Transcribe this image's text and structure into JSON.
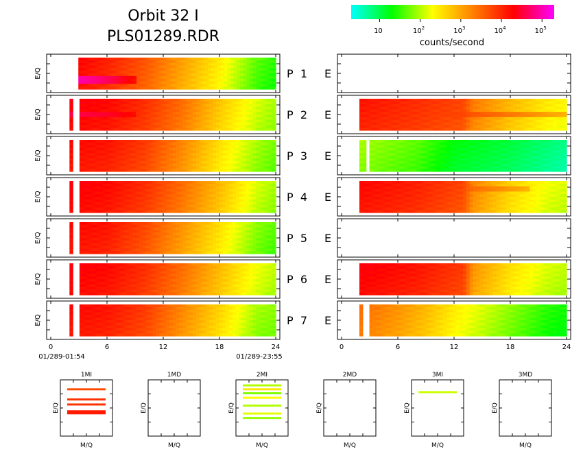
{
  "header": {
    "title_line1": "Orbit 32 I",
    "title_line2": "PLS01289.RDR"
  },
  "colorbar": {
    "label": "counts/second",
    "ticks": [
      {
        "base": "10",
        "exp": ""
      },
      {
        "base": "10",
        "exp": "2"
      },
      {
        "base": "10",
        "exp": "3"
      },
      {
        "base": "10",
        "exp": "4"
      },
      {
        "base": "10",
        "exp": "5"
      }
    ],
    "log_range": [
      0.3,
      5.3
    ],
    "colors": [
      "#00ffff",
      "#00ff00",
      "#ffff00",
      "#ff8000",
      "#ff0000",
      "#ff00ff"
    ]
  },
  "chart_data": {
    "type": "heatmap",
    "ylabel": "E/Q",
    "x_ticks": [
      "0",
      "6",
      "12",
      "18",
      "24"
    ],
    "x_range": [
      0,
      24
    ],
    "x_start_label": "01/289-01:54",
    "x_end_label": "01/289-23:55",
    "panel_mid_label": "E",
    "left_panels": [
      {
        "label": "P 1",
        "data_start_hr": 2.6,
        "data_end_hr": 24,
        "gap": [
          2.3,
          2.8
        ],
        "profile": [
          [
            2.0,
            4.3
          ],
          [
            6,
            4.0
          ],
          [
            10,
            3.6
          ],
          [
            14,
            3.0
          ],
          [
            18,
            2.4
          ],
          [
            22,
            1.6
          ],
          [
            24,
            1.4
          ]
        ],
        "band": {
          "row_from": 0.55,
          "row_to": 0.85,
          "level": 5.0,
          "x_to_hr": 9
        }
      },
      {
        "label": "P 2",
        "data_start_hr": 2.0,
        "data_end_hr": 24,
        "gap": [
          2.4,
          3.0
        ],
        "profile": [
          [
            2.0,
            4.3
          ],
          [
            6,
            4.2
          ],
          [
            10,
            3.9
          ],
          [
            14,
            3.4
          ],
          [
            18,
            2.7
          ],
          [
            22,
            2.1
          ],
          [
            24,
            1.9
          ]
        ],
        "band": {
          "row_from": 0.45,
          "row_to": 0.6,
          "level": 4.6,
          "x_to_hr": 9
        }
      },
      {
        "label": "P 3",
        "data_start_hr": 2.0,
        "data_end_hr": 24,
        "gap": [
          2.4,
          3.0
        ],
        "profile": [
          [
            2.0,
            4.2
          ],
          [
            6,
            4.1
          ],
          [
            10,
            3.8
          ],
          [
            14,
            3.2
          ],
          [
            18,
            2.5
          ],
          [
            22,
            1.9
          ],
          [
            24,
            1.7
          ]
        ],
        "band": null
      },
      {
        "label": "P 4",
        "data_start_hr": 2.0,
        "data_end_hr": 24,
        "gap": [
          2.4,
          3.0
        ],
        "profile": [
          [
            2.0,
            4.3
          ],
          [
            6,
            4.2
          ],
          [
            10,
            3.9
          ],
          [
            14,
            3.4
          ],
          [
            18,
            2.8
          ],
          [
            22,
            2.1
          ],
          [
            24,
            1.9
          ]
        ],
        "band": null
      },
      {
        "label": "P 5",
        "data_start_hr": 2.0,
        "data_end_hr": 24,
        "gap": [
          2.4,
          3.0
        ],
        "profile": [
          [
            2.0,
            4.2
          ],
          [
            6,
            4.1
          ],
          [
            10,
            3.7
          ],
          [
            14,
            3.1
          ],
          [
            18,
            2.5
          ],
          [
            22,
            1.8
          ],
          [
            24,
            1.6
          ]
        ],
        "band": null
      },
      {
        "label": "P 6",
        "data_start_hr": 2.0,
        "data_end_hr": 24,
        "gap": [
          2.4,
          3.0
        ],
        "profile": [
          [
            2.0,
            4.3
          ],
          [
            6,
            4.2
          ],
          [
            10,
            3.9
          ],
          [
            14,
            3.4
          ],
          [
            18,
            2.8
          ],
          [
            22,
            2.2
          ],
          [
            24,
            2.0
          ]
        ],
        "band": null
      },
      {
        "label": "P 7",
        "data_start_hr": 2.0,
        "data_end_hr": 24,
        "gap": [
          2.4,
          3.0
        ],
        "profile": [
          [
            2.0,
            4.2
          ],
          [
            6,
            4.1
          ],
          [
            10,
            3.8
          ],
          [
            14,
            3.2
          ],
          [
            18,
            2.6
          ],
          [
            22,
            1.9
          ],
          [
            24,
            1.8
          ]
        ],
        "band": null
      }
    ],
    "right_panels": [
      {
        "empty": true
      },
      {
        "data_start_hr": 1.9,
        "data_end_hr": 24,
        "gap": null,
        "profile": [
          [
            1.9,
            4.1
          ],
          [
            8,
            3.9
          ],
          [
            13,
            3.7
          ],
          [
            14,
            3.3
          ],
          [
            18,
            2.8
          ],
          [
            22,
            2.4
          ],
          [
            24,
            2.3
          ]
        ],
        "band": {
          "row_from": 0.4,
          "row_to": 0.55,
          "level": 3.8,
          "x_to_hr": 24
        }
      },
      {
        "data_start_hr": 1.9,
        "data_end_hr": 24,
        "gap": [
          2.6,
          3.0
        ],
        "profile": [
          [
            1.9,
            1.9
          ],
          [
            8,
            1.6
          ],
          [
            12,
            1.2
          ],
          [
            18,
            1.0
          ],
          [
            22,
            0.8
          ],
          [
            24,
            0.7
          ]
        ],
        "band": null
      },
      {
        "data_start_hr": 1.9,
        "data_end_hr": 24,
        "gap": null,
        "profile": [
          [
            1.9,
            4.2
          ],
          [
            8,
            4.0
          ],
          [
            13,
            3.7
          ],
          [
            14,
            3.2
          ],
          [
            18,
            2.6
          ],
          [
            22,
            2.2
          ],
          [
            24,
            2.1
          ]
        ],
        "band": {
          "row_from": 0.2,
          "row_to": 0.35,
          "level": 3.6,
          "x_to_hr": 20
        }
      },
      {
        "empty": true
      },
      {
        "data_start_hr": 1.9,
        "data_end_hr": 24,
        "gap": null,
        "profile": [
          [
            1.9,
            4.3
          ],
          [
            8,
            4.1
          ],
          [
            13,
            3.8
          ],
          [
            14,
            3.1
          ],
          [
            18,
            2.5
          ],
          [
            22,
            2.1
          ],
          [
            24,
            2.0
          ]
        ],
        "band": null
      },
      {
        "data_start_hr": 1.9,
        "data_end_hr": 24,
        "gap": [
          2.4,
          2.8
        ],
        "profile": [
          [
            1.9,
            3.4
          ],
          [
            6,
            3.1
          ],
          [
            9,
            2.8
          ],
          [
            12,
            2.4
          ],
          [
            18,
            1.8
          ],
          [
            22,
            1.4
          ],
          [
            24,
            1.3
          ]
        ],
        "band": null
      }
    ],
    "small_panels": [
      {
        "title": "1MI",
        "xlabel": "M/Q",
        "ylabel": "E/Q",
        "lines": [
          {
            "y": 0.15,
            "level": 3.7,
            "h": 3
          },
          {
            "y": 0.33,
            "level": 3.9,
            "h": 3
          },
          {
            "y": 0.42,
            "level": 3.9,
            "h": 3
          },
          {
            "y": 0.54,
            "level": 4.1,
            "h": 6
          }
        ]
      },
      {
        "title": "1MD",
        "xlabel": "M/Q",
        "ylabel": "E/Q",
        "lines": []
      },
      {
        "title": "2MI",
        "xlabel": "M/Q",
        "ylabel": "E/Q",
        "lines": [
          {
            "y": 0.08,
            "level": 2.0,
            "h": 3
          },
          {
            "y": 0.15,
            "level": 2.5,
            "h": 3
          },
          {
            "y": 0.22,
            "level": 1.8,
            "h": 3
          },
          {
            "y": 0.3,
            "level": 2.3,
            "h": 3
          },
          {
            "y": 0.44,
            "level": 2.0,
            "h": 3
          },
          {
            "y": 0.58,
            "level": 2.2,
            "h": 3
          },
          {
            "y": 0.66,
            "level": 1.9,
            "h": 3
          }
        ]
      },
      {
        "title": "2MD",
        "xlabel": "M/Q",
        "ylabel": "E/Q",
        "lines": []
      },
      {
        "title": "3MI",
        "xlabel": "M/Q",
        "ylabel": "E/Q",
        "lines": [
          {
            "y": 0.2,
            "level": 2.1,
            "h": 3
          }
        ]
      },
      {
        "title": "3MD",
        "xlabel": "M/Q",
        "ylabel": "E/Q",
        "lines": []
      }
    ]
  }
}
